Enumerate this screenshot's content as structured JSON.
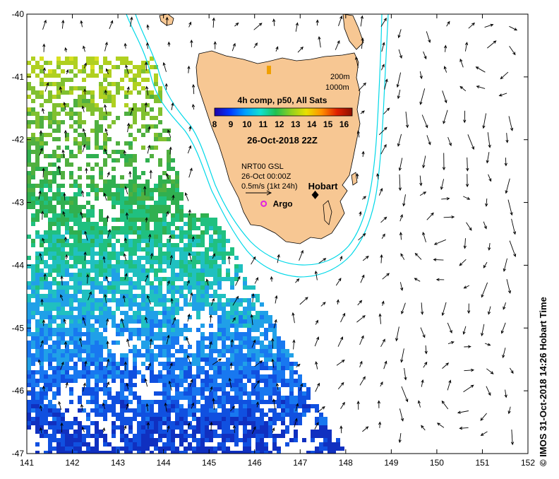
{
  "map": {
    "lon_range": [
      141,
      152
    ],
    "lat_range": [
      -47,
      -40
    ],
    "lon_ticks": [
      "141",
      "142",
      "143",
      "144",
      "145",
      "146",
      "147",
      "148",
      "149",
      "150",
      "151",
      "152"
    ],
    "lat_ticks": [
      "-40",
      "-41",
      "-42",
      "-43",
      "-44",
      "-45",
      "-46",
      "-47"
    ],
    "land_color": "#f7c793",
    "contour_color": "#00e5ee"
  },
  "legend": {
    "contour_200": "200m",
    "contour_1000": "1000m",
    "colorbar_title": "4h comp, p50, All Sats",
    "colorbar_ticks": [
      "8",
      "9",
      "10",
      "11",
      "12",
      "13",
      "14",
      "15",
      "16"
    ],
    "colorbar_range": [
      8,
      16.5
    ],
    "colorbar_colors": [
      "#1f00a8",
      "#0036ff",
      "#00a0ff",
      "#10e0d0",
      "#20c050",
      "#90d020",
      "#e8e000",
      "#ff9000",
      "#e02000",
      "#8b1000"
    ],
    "date": "26-Oct-2018 22Z"
  },
  "currents": {
    "product": "NRT00 GSL",
    "time": "26-Oct 00:00Z",
    "scale": "0.5m/s (1kt 24h)"
  },
  "places": {
    "hobart": {
      "label": "Hobart",
      "lon": 147.33,
      "lat": -42.88
    },
    "argo": {
      "label": "Argo",
      "lon": 146.2,
      "lat": -43.02
    }
  },
  "credit": "© IMOS 31-Oct-2018 14:26 Hobart Time"
}
